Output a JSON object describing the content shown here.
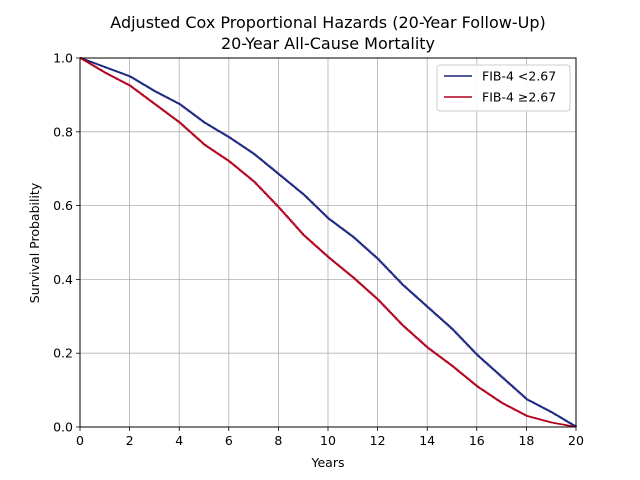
{
  "chart_data": {
    "type": "line",
    "step": true,
    "title": "Adjusted Cox Proportional Hazards (20-Year Follow-Up)",
    "subtitle": "20-Year All-Cause Mortality",
    "xlabel": "Years",
    "ylabel": "Survival Probability",
    "xlim": [
      0,
      20
    ],
    "ylim": [
      0,
      1.0
    ],
    "x_ticks": [
      "0",
      "2",
      "4",
      "6",
      "8",
      "10",
      "12",
      "14",
      "16",
      "18",
      "20"
    ],
    "y_ticks": [
      "0.0",
      "0.2",
      "0.4",
      "0.6",
      "0.8",
      "1.0"
    ],
    "grid": true,
    "legend_position": "upper-right",
    "series": [
      {
        "name": "FIB-4 <2.67",
        "color": "#1a237e",
        "x": [
          0,
          1,
          2,
          3,
          4,
          5,
          6,
          7,
          8,
          9,
          10,
          11,
          12,
          13,
          14,
          15,
          16,
          17,
          18,
          19,
          20
        ],
        "y": [
          1.0,
          0.975,
          0.95,
          0.91,
          0.875,
          0.825,
          0.785,
          0.74,
          0.685,
          0.63,
          0.565,
          0.515,
          0.455,
          0.385,
          0.325,
          0.265,
          0.195,
          0.135,
          0.075,
          0.04,
          0.0
        ]
      },
      {
        "name": "FIB-4 ≥2.67",
        "color": "#b0001e",
        "x": [
          0,
          1,
          2,
          3,
          4,
          5,
          6,
          7,
          8,
          9,
          10,
          11,
          12,
          13,
          14,
          15,
          16,
          17,
          18,
          19,
          20
        ],
        "y": [
          1.0,
          0.96,
          0.925,
          0.875,
          0.825,
          0.765,
          0.72,
          0.665,
          0.595,
          0.52,
          0.46,
          0.405,
          0.345,
          0.275,
          0.215,
          0.165,
          0.11,
          0.065,
          0.03,
          0.012,
          0.0
        ]
      }
    ]
  }
}
